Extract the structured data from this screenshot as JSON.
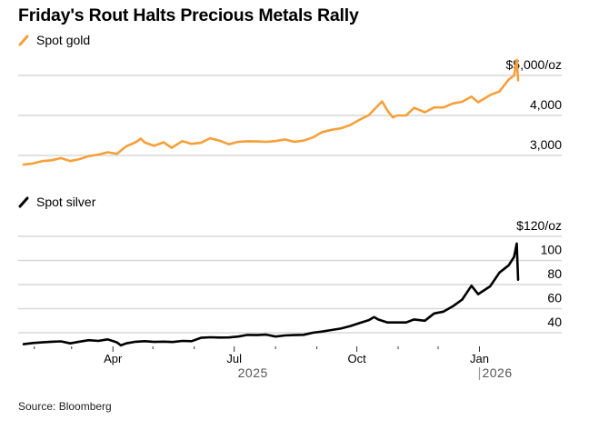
{
  "title": "Friday's Rout Halts Precious Metals Rally",
  "source": "Source: Bloomberg",
  "colors": {
    "gold": "#F5A03A",
    "silver": "#000000",
    "grid": "#d9d9d9"
  },
  "chart_data": [
    {
      "type": "line",
      "title": "Spot gold",
      "legend": "Spot gold",
      "unit": "$/oz",
      "color": "#F5A03A",
      "ylim": [
        2700,
        5500
      ],
      "yticks": [
        3000,
        4000,
        5000
      ],
      "ytick_labels": [
        "3,000",
        "4,000",
        "$5,000/oz"
      ],
      "grid": true,
      "x": [
        "2025-01-24",
        "2025-01-31",
        "2025-02-07",
        "2025-02-14",
        "2025-02-21",
        "2025-02-28",
        "2025-03-07",
        "2025-03-14",
        "2025-03-21",
        "2025-03-28",
        "2025-04-04",
        "2025-04-11",
        "2025-04-18",
        "2025-04-22",
        "2025-04-25",
        "2025-05-02",
        "2025-05-09",
        "2025-05-15",
        "2025-05-23",
        "2025-05-30",
        "2025-06-06",
        "2025-06-13",
        "2025-06-20",
        "2025-06-27",
        "2025-07-04",
        "2025-07-11",
        "2025-07-18",
        "2025-07-25",
        "2025-08-01",
        "2025-08-08",
        "2025-08-15",
        "2025-08-22",
        "2025-08-29",
        "2025-09-05",
        "2025-09-12",
        "2025-09-19",
        "2025-09-26",
        "2025-10-03",
        "2025-10-10",
        "2025-10-17",
        "2025-10-20",
        "2025-10-24",
        "2025-10-28",
        "2025-10-31",
        "2025-11-07",
        "2025-11-13",
        "2025-11-21",
        "2025-11-28",
        "2025-12-05",
        "2025-12-12",
        "2025-12-19",
        "2025-12-26",
        "2025-12-31",
        "2026-01-09",
        "2026-01-16",
        "2026-01-23",
        "2026-01-27",
        "2026-01-29",
        "2026-01-30"
      ],
      "values": [
        2770,
        2800,
        2860,
        2880,
        2935,
        2860,
        2910,
        2985,
        3020,
        3080,
        3040,
        3230,
        3330,
        3420,
        3320,
        3240,
        3330,
        3190,
        3360,
        3290,
        3315,
        3430,
        3370,
        3280,
        3340,
        3355,
        3350,
        3340,
        3360,
        3400,
        3340,
        3370,
        3450,
        3585,
        3640,
        3680,
        3760,
        3890,
        4010,
        4250,
        4350,
        4120,
        3950,
        4000,
        4000,
        4190,
        4080,
        4200,
        4200,
        4300,
        4340,
        4470,
        4330,
        4510,
        4600,
        4900,
        5000,
        5390,
        4880
      ],
      "xtick_labels": [
        "Apr",
        "Jul",
        "Oct",
        "Jan"
      ]
    },
    {
      "type": "line",
      "title": "Spot silver",
      "legend": "Spot silver",
      "unit": "$/oz",
      "color": "#000000",
      "ylim": [
        30,
        120
      ],
      "yticks": [
        40,
        60,
        80,
        100,
        120
      ],
      "ytick_labels": [
        "40",
        "60",
        "80",
        "100",
        "$120/oz"
      ],
      "grid": true,
      "x": [
        "2025-01-24",
        "2025-01-31",
        "2025-02-07",
        "2025-02-14",
        "2025-02-21",
        "2025-02-28",
        "2025-03-07",
        "2025-03-14",
        "2025-03-21",
        "2025-03-28",
        "2025-04-04",
        "2025-04-07",
        "2025-04-11",
        "2025-04-18",
        "2025-04-25",
        "2025-05-02",
        "2025-05-09",
        "2025-05-16",
        "2025-05-23",
        "2025-05-30",
        "2025-06-06",
        "2025-06-13",
        "2025-06-20",
        "2025-06-27",
        "2025-07-04",
        "2025-07-11",
        "2025-07-18",
        "2025-07-25",
        "2025-08-01",
        "2025-08-08",
        "2025-08-15",
        "2025-08-22",
        "2025-08-29",
        "2025-09-05",
        "2025-09-12",
        "2025-09-19",
        "2025-09-26",
        "2025-10-03",
        "2025-10-10",
        "2025-10-14",
        "2025-10-17",
        "2025-10-24",
        "2025-10-31",
        "2025-11-07",
        "2025-11-13",
        "2025-11-21",
        "2025-11-28",
        "2025-12-05",
        "2025-12-12",
        "2025-12-19",
        "2025-12-26",
        "2025-12-31",
        "2026-01-09",
        "2026-01-16",
        "2026-01-23",
        "2026-01-27",
        "2026-01-29",
        "2026-01-30"
      ],
      "values": [
        30.5,
        31.5,
        32.0,
        32.5,
        32.8,
        31.2,
        32.6,
        33.8,
        33.2,
        34.5,
        32.0,
        29.5,
        31.2,
        32.5,
        33.0,
        32.4,
        32.6,
        32.3,
        33.2,
        33.0,
        35.8,
        36.2,
        36.0,
        36.1,
        36.8,
        38.2,
        38.0,
        38.4,
        36.8,
        37.7,
        38.0,
        38.3,
        40.0,
        41.0,
        42.3,
        43.5,
        45.5,
        48.0,
        50.5,
        53.0,
        51.0,
        48.5,
        48.5,
        48.5,
        51.0,
        50.0,
        56.0,
        57.5,
        62.0,
        67.5,
        79.0,
        72.0,
        78.5,
        90.0,
        96.0,
        103.0,
        114.0,
        84.0
      ],
      "xtick_labels": [
        "Apr",
        "Jul",
        "Oct",
        "Jan"
      ]
    }
  ],
  "x_axis": {
    "month_labels": [
      {
        "date": "2025-04-01",
        "label": "Apr"
      },
      {
        "date": "2025-07-01",
        "label": "Jul"
      },
      {
        "date": "2025-10-01",
        "label": "Oct"
      },
      {
        "date": "2026-01-01",
        "label": "Jan"
      }
    ],
    "minor_ticks": [
      "2025-02-01",
      "2025-03-01",
      "2025-04-01",
      "2025-05-01",
      "2025-06-01",
      "2025-07-01",
      "2025-08-01",
      "2025-09-01",
      "2025-10-01",
      "2025-11-01",
      "2025-12-01",
      "2026-01-01"
    ],
    "years": [
      {
        "date": "2025-07-15",
        "label": "2025"
      },
      {
        "date": "2026-01-01",
        "label": "2026"
      }
    ],
    "start": "2025-01-24",
    "end": "2026-01-30"
  }
}
